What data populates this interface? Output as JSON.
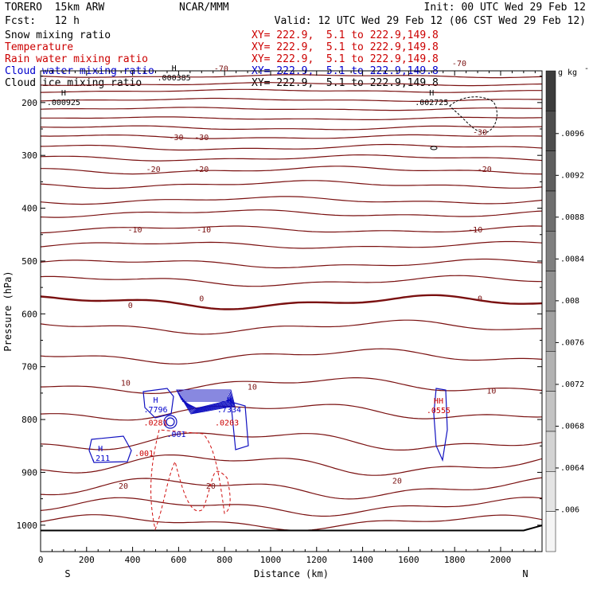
{
  "header": {
    "model": "TORERO  15km ARW",
    "org": "NCAR/MMM",
    "init": "Init: 00 UTC Wed 29 Feb 12",
    "fcst": "Fcst:   12 h",
    "valid": "Valid: 12 UTC Wed 29 Feb 12 (06 CST Wed 29 Feb 12)"
  },
  "fields": [
    {
      "label": "Snow mixing ratio",
      "xy": "XY= 222.9,  5.1 to 222.9,149.8",
      "color": "#000000",
      "xycolor": "#cc0000"
    },
    {
      "label": "Temperature",
      "xy": "XY= 222.9,  5.1 to 222.9,149.8",
      "color": "#cc0000",
      "xycolor": "#cc0000"
    },
    {
      "label": "Rain water mixing ratio",
      "xy": "XY= 222.9,  5.1 to 222.9,149.8",
      "color": "#cc0000",
      "xycolor": "#cc0000"
    },
    {
      "label": "Cloud water mixing ratio",
      "xy": "XY= 222.9,  5.1 to 222.9,149.8",
      "color": "#0000cc",
      "xycolor": "#0000cc"
    },
    {
      "label": "Cloud ice mixing ratio",
      "xy": "XY= 222.9,  5.1 to 222.9,149.8",
      "color": "#000000",
      "xycolor": "#000000"
    }
  ],
  "chart_data": {
    "type": "cross-section contour",
    "xlabel": "Distance (km)",
    "ylabel": "Pressure (hPa)",
    "x_ticks": [
      0,
      200,
      400,
      600,
      800,
      1000,
      1200,
      1400,
      1600,
      1800,
      2000
    ],
    "xlim": [
      0,
      2180
    ],
    "y_ticks": [
      200,
      300,
      400,
      500,
      600,
      700,
      800,
      900,
      1000
    ],
    "ylim": [
      1050,
      140
    ],
    "end_labels": {
      "left": "S",
      "right": "N"
    },
    "colorbar": {
      "unit": "g kg",
      "unit_exp": "-1",
      "ticks": [
        ".0096",
        ".0092",
        ".0088",
        ".0084",
        ".008",
        ".0076",
        ".0072",
        ".0068",
        ".0064",
        ".006"
      ]
    },
    "temperature_labels": [
      {
        "x": 785,
        "p": 135,
        "t": "-70"
      },
      {
        "x": 1820,
        "p": 125,
        "t": "-70"
      },
      {
        "x": 590,
        "p": 265,
        "t": "-30"
      },
      {
        "x": 700,
        "p": 265,
        "t": "-30"
      },
      {
        "x": 1910,
        "p": 255,
        "t": "-30"
      },
      {
        "x": 490,
        "p": 325,
        "t": "-20"
      },
      {
        "x": 700,
        "p": 325,
        "t": "-20"
      },
      {
        "x": 1930,
        "p": 325,
        "t": "-20"
      },
      {
        "x": 410,
        "p": 440,
        "t": "-10"
      },
      {
        "x": 710,
        "p": 440,
        "t": "-10"
      },
      {
        "x": 1890,
        "p": 440,
        "t": "-10"
      },
      {
        "x": 390,
        "p": 583,
        "t": "0"
      },
      {
        "x": 700,
        "p": 570,
        "t": "0"
      },
      {
        "x": 1910,
        "p": 570,
        "t": "0"
      },
      {
        "x": 370,
        "p": 730,
        "t": "10"
      },
      {
        "x": 920,
        "p": 737,
        "t": "10"
      },
      {
        "x": 1960,
        "p": 745,
        "t": "10"
      },
      {
        "x": 360,
        "p": 925,
        "t": "20"
      },
      {
        "x": 740,
        "p": 925,
        "t": "20"
      },
      {
        "x": 1550,
        "p": 915,
        "t": "20"
      }
    ],
    "extrema_labels": [
      {
        "x": 580,
        "p": 155,
        "m": "H",
        "v": ".000385",
        "color": "#000000"
      },
      {
        "x": 100,
        "p": 202,
        "m": "H",
        "v": ".000925",
        "color": "#000000"
      },
      {
        "x": 1700,
        "p": 202,
        "m": "H",
        "v": ".002725",
        "color": "#000000"
      },
      {
        "x": 500,
        "p": 783,
        "m": "H",
        "v": ".7796",
        "color": "#0000cc"
      },
      {
        "x": 820,
        "p": 783,
        "m": "H",
        "v": ".7334",
        "color": "#0000cc"
      },
      {
        "x": 500,
        "p": 808,
        "m": "",
        "v": ".0281",
        "color": "#cc0000"
      },
      {
        "x": 810,
        "p": 808,
        "m": "",
        "v": ".0203",
        "color": "#cc0000"
      },
      {
        "x": 590,
        "p": 830,
        "m": "",
        "v": ".001",
        "color": "#0000cc"
      },
      {
        "x": 450,
        "p": 866,
        "m": "",
        "v": ".001",
        "color": "#cc0000"
      },
      {
        "x": 260,
        "p": 875,
        "m": "H",
        "v": ".211",
        "color": "#0000cc"
      },
      {
        "x": 1730,
        "p": 785,
        "m": "HH",
        "v": ".0555",
        "color": "#cc0000"
      }
    ]
  }
}
